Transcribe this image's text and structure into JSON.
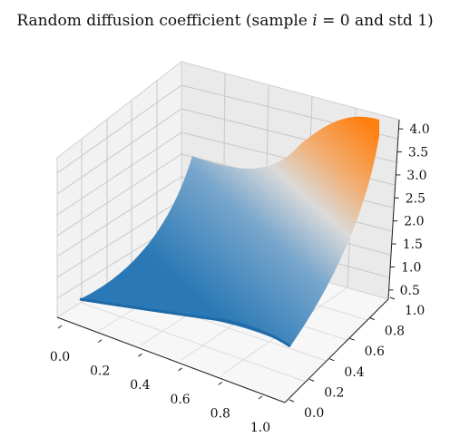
{
  "chart_data": {
    "type": "surface",
    "title": "Random diffusion coefficient (sample i = 0 and std 1)",
    "title_parts": {
      "before": "Random diffusion coefficient (sample ",
      "var": "i",
      "after": " = 0 and std 1)"
    },
    "x_ticks": [
      "0.0",
      "0.2",
      "0.4",
      "0.6",
      "0.8",
      "1.0"
    ],
    "y_ticks": [
      "0.0",
      "0.2",
      "0.4",
      "0.6",
      "0.8",
      "1.0"
    ],
    "z_ticks": [
      "0.5",
      "1.0",
      "1.5",
      "2.0",
      "2.5",
      "3.0",
      "3.5",
      "4.0"
    ],
    "xlim": [
      0,
      1
    ],
    "ylim": [
      0,
      1
    ],
    "zlim": [
      0.3,
      4.2
    ],
    "grid": true,
    "colormap": {
      "low": "#1f77b4",
      "mid": "#dcdcdc",
      "high": "#ff7f0e"
    },
    "surface_samples": {
      "x": [
        0.0,
        0.5,
        1.0
      ],
      "y": [
        0.0,
        0.5,
        1.0
      ],
      "z": [
        [
          0.6,
          0.7,
          1.1
        ],
        [
          0.4,
          0.5,
          1.2
        ],
        [
          0.9,
          1.1,
          4.1
        ]
      ]
    }
  }
}
